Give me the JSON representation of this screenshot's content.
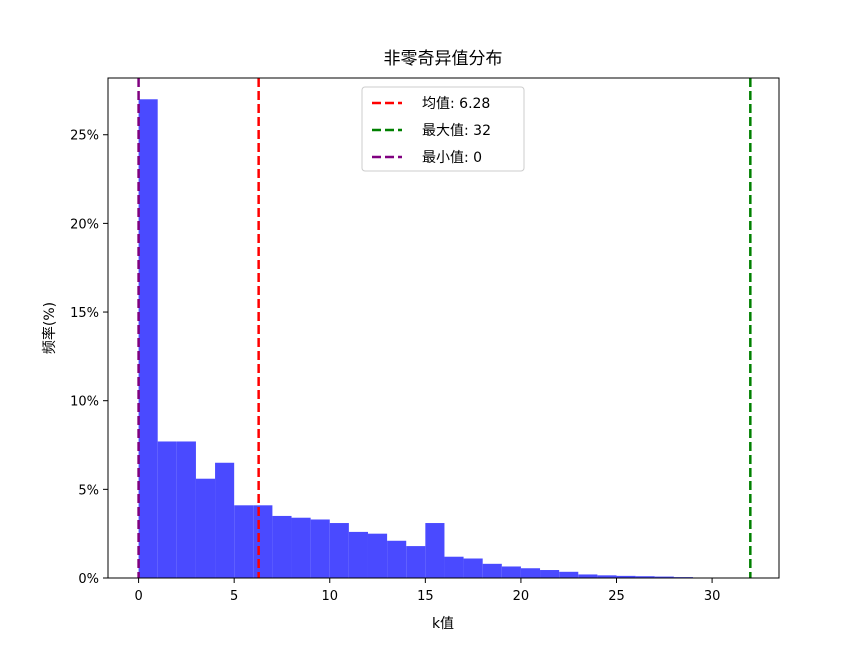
{
  "chart_data": {
    "type": "bar",
    "title": "非零奇异值分布",
    "xlabel": "k值",
    "ylabel": "频率(%)",
    "xlim": [
      -1.6,
      33.5
    ],
    "ylim": [
      0,
      28.2
    ],
    "xticks": [
      0,
      5,
      10,
      15,
      20,
      25,
      30
    ],
    "yticks": [
      0,
      5,
      10,
      15,
      20,
      25
    ],
    "ytick_labels": [
      "0%",
      "5%",
      "10%",
      "15%",
      "20%",
      "25%"
    ],
    "bin_width": 1.0,
    "bin_start": 0,
    "bar_color": "#4a4aff",
    "values": [
      27.0,
      7.7,
      7.7,
      5.6,
      6.5,
      4.1,
      4.1,
      3.5,
      3.4,
      3.3,
      3.1,
      2.6,
      2.5,
      2.1,
      1.8,
      3.1,
      1.2,
      1.1,
      0.8,
      0.65,
      0.55,
      0.45,
      0.35,
      0.2,
      0.15,
      0.12,
      0.1,
      0.08,
      0.05
    ],
    "lines": [
      {
        "name": "均值: 6.28",
        "x": 6.28,
        "color": "#ff0000"
      },
      {
        "name": "最大值: 32",
        "x": 32,
        "color": "#008000"
      },
      {
        "name": "最小值: 0",
        "x": 0,
        "color": "#800080"
      }
    ],
    "legend_position": "top-center",
    "grid": false
  }
}
